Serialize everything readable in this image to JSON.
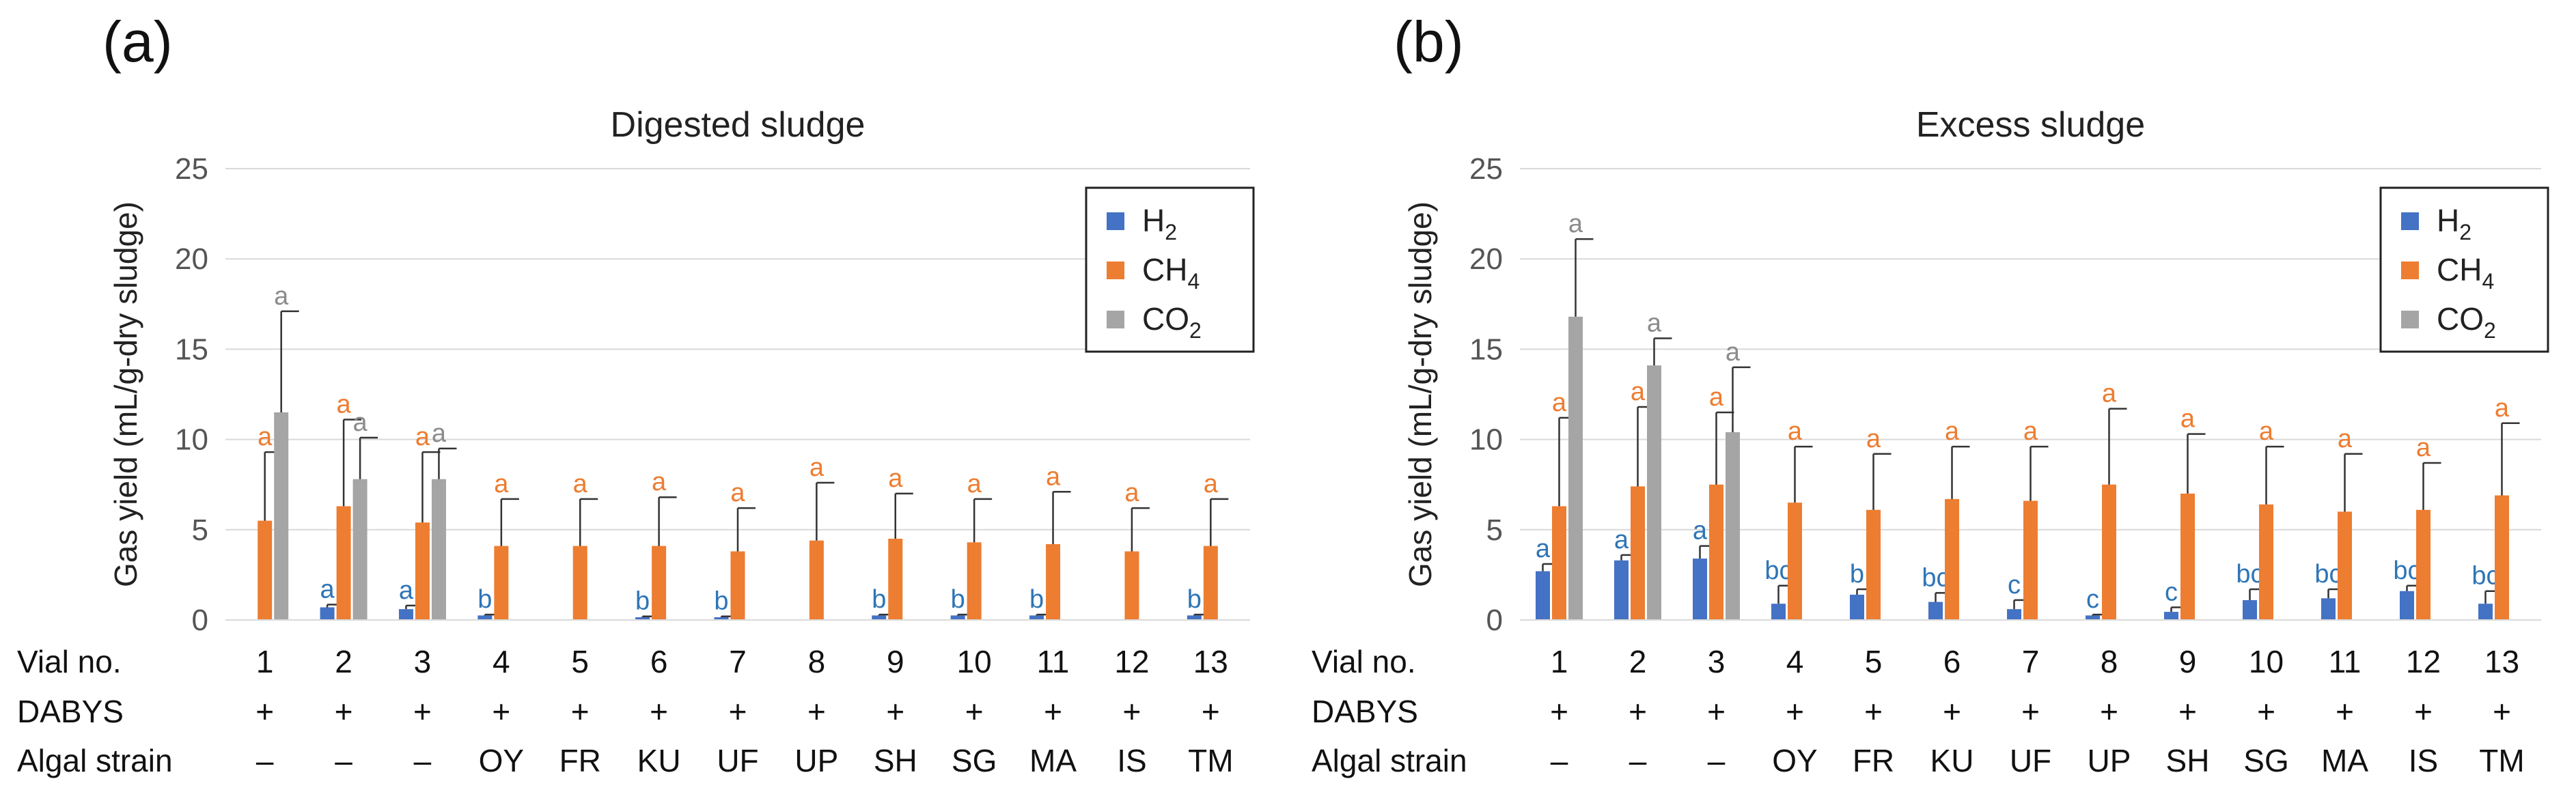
{
  "colors": {
    "H2": "#4472C4",
    "CH4": "#ED7D31",
    "CO2": "#A5A5A5",
    "sig_blue": "#2E75B6",
    "sig_orange": "#ED7D31",
    "sig_gray": "#8C8C8C"
  },
  "ylabel": "Gas yield (mL/g-dry  sludge)",
  "row_labels": {
    "vial": "Vial no.",
    "dabys": "DABYS",
    "strain": "Algal strain"
  },
  "vials": [
    "1",
    "2",
    "3",
    "4",
    "5",
    "6",
    "7",
    "8",
    "9",
    "10",
    "11",
    "12",
    "13"
  ],
  "dabys": [
    "+",
    "+",
    "+",
    "+",
    "+",
    "+",
    "+",
    "+",
    "+",
    "+",
    "+",
    "+",
    "+"
  ],
  "strains": [
    "–",
    "–",
    "–",
    "OY",
    "FR",
    "KU",
    "UF",
    "UP",
    "SH",
    "SG",
    "MA",
    "IS",
    "TM"
  ],
  "legend": [
    {
      "key": "H2",
      "base": "H",
      "sub": "2"
    },
    {
      "key": "CH4",
      "base": "CH",
      "sub": "4"
    },
    {
      "key": "CO2",
      "base": "CO",
      "sub": "2"
    }
  ],
  "chart_data": [
    {
      "type": "bar",
      "panel": "(a)",
      "title": "Digested sludge",
      "ylim": [
        0,
        25
      ],
      "yticks": [
        0,
        5,
        10,
        15,
        20,
        25
      ],
      "categories": [
        "1",
        "2",
        "3",
        "4",
        "5",
        "6",
        "7",
        "8",
        "9",
        "10",
        "11",
        "12",
        "13"
      ],
      "series": [
        {
          "name": "H2",
          "values": [
            0,
            0.7,
            0.6,
            0.25,
            0,
            0.15,
            0.15,
            0,
            0.25,
            0.25,
            0.25,
            0,
            0.25
          ],
          "errors": [
            0,
            0.15,
            0.2,
            0.05,
            0,
            0.05,
            0.05,
            0,
            0.05,
            0.05,
            0.05,
            0,
            0.05
          ],
          "labels": [
            "",
            "a",
            "a",
            "b",
            "",
            "b",
            "b",
            "",
            "b",
            "b",
            "b",
            "",
            "b"
          ]
        },
        {
          "name": "CH4",
          "values": [
            5.5,
            6.3,
            5.4,
            4.1,
            4.1,
            4.1,
            3.8,
            4.4,
            4.5,
            4.3,
            4.2,
            3.8,
            4.1
          ],
          "errors": [
            3.8,
            4.8,
            3.9,
            2.6,
            2.6,
            2.7,
            2.4,
            3.2,
            2.5,
            2.4,
            2.9,
            2.4,
            2.6
          ],
          "labels": [
            "a",
            "a",
            "a",
            "a",
            "a",
            "a",
            "a",
            "a",
            "a",
            "a",
            "a",
            "a",
            "a"
          ]
        },
        {
          "name": "CO2",
          "values": [
            11.5,
            7.8,
            7.8,
            null,
            null,
            null,
            null,
            null,
            null,
            null,
            null,
            null,
            null
          ],
          "errors": [
            5.6,
            2.3,
            1.7,
            null,
            null,
            null,
            null,
            null,
            null,
            null,
            null,
            null,
            null
          ],
          "labels": [
            "a",
            "a",
            "a",
            "",
            "",
            "",
            "",
            "",
            "",
            "",
            "",
            "",
            ""
          ]
        }
      ]
    },
    {
      "type": "bar",
      "panel": "(b)",
      "title": "Excess sludge",
      "ylim": [
        0,
        25
      ],
      "yticks": [
        0,
        5,
        10,
        15,
        20,
        25
      ],
      "categories": [
        "1",
        "2",
        "3",
        "4",
        "5",
        "6",
        "7",
        "8",
        "9",
        "10",
        "11",
        "12",
        "13"
      ],
      "series": [
        {
          "name": "H2",
          "values": [
            2.7,
            3.3,
            3.4,
            0.9,
            1.4,
            1.0,
            0.6,
            0.25,
            0.45,
            1.1,
            1.2,
            1.6,
            0.9
          ],
          "errors": [
            0.4,
            0.3,
            0.7,
            1.0,
            0.3,
            0.5,
            0.5,
            0.05,
            0.25,
            0.6,
            0.5,
            0.3,
            0.7
          ],
          "labels": [
            "a",
            "a",
            "a",
            "bc",
            "b",
            "bc",
            "c",
            "c",
            "c",
            "bc",
            "bc",
            "bc",
            "bc"
          ]
        },
        {
          "name": "CH4",
          "values": [
            6.3,
            7.4,
            7.5,
            6.5,
            6.1,
            6.7,
            6.6,
            7.5,
            7.0,
            6.4,
            6.0,
            6.1,
            6.9
          ],
          "errors": [
            4.9,
            4.4,
            4.0,
            3.1,
            3.1,
            2.9,
            3.0,
            4.2,
            3.3,
            3.2,
            3.2,
            2.6,
            4.0
          ],
          "labels": [
            "a",
            "a",
            "a",
            "a",
            "a",
            "a",
            "a",
            "a",
            "a",
            "a",
            "a",
            "a",
            "a"
          ]
        },
        {
          "name": "CO2",
          "values": [
            16.8,
            14.1,
            10.4,
            null,
            null,
            null,
            null,
            null,
            null,
            null,
            null,
            null,
            null
          ],
          "errors": [
            4.3,
            1.5,
            3.6,
            null,
            null,
            null,
            null,
            null,
            null,
            null,
            null,
            null,
            null
          ],
          "labels": [
            "a",
            "a",
            "a",
            "",
            "",
            "",
            "",
            "",
            "",
            "",
            "",
            "",
            ""
          ]
        }
      ]
    }
  ]
}
